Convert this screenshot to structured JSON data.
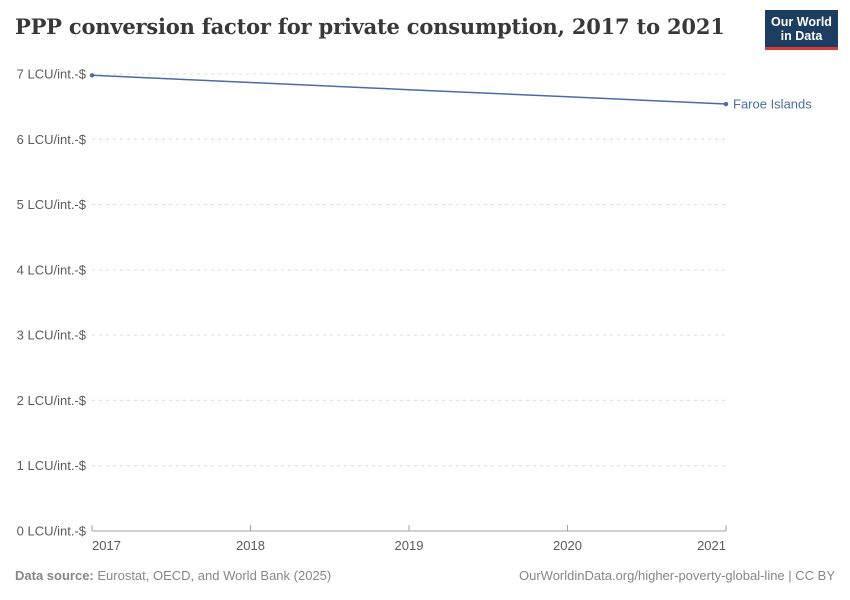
{
  "title": "PPP conversion factor for private consumption, 2017 to 2021",
  "logo": {
    "line1": "Our World",
    "line2": "in Data"
  },
  "chart_data": {
    "type": "line",
    "title": "PPP conversion factor for private consumption, 2017 to 2021",
    "x": [
      2017,
      2018,
      2019,
      2020,
      2021
    ],
    "x_tick_labels": [
      "2017",
      "2018",
      "2019",
      "2020",
      "2021"
    ],
    "series": [
      {
        "name": "Faroe Islands",
        "values": [
          6.98,
          6.87,
          6.76,
          6.65,
          6.54
        ],
        "color": "#4a6ba5"
      }
    ],
    "ylim": [
      0,
      7
    ],
    "y_ticks": [
      0,
      1,
      2,
      3,
      4,
      5,
      6,
      7
    ],
    "y_tick_suffix": " LCU/int.-$",
    "grid": "horizontal-dashed",
    "legend_position": "end-of-line-label"
  },
  "footer": {
    "datasource_label": "Data source:",
    "datasource_text": " Eurostat, OECD, and World Bank (2025)",
    "credit": "OurWorldinData.org/higher-poverty-global-line | CC BY"
  },
  "colors": {
    "line": "#4a6ba5",
    "entity_label": "#4a6ba5",
    "grid": "#dcdcdc",
    "axis": "#a3a3a3",
    "tick_text": "#5b5b5b",
    "footer_text": "#878787",
    "title_text": "#383838",
    "logo_navy": "#1d3d63",
    "logo_red": "#d73a34"
  }
}
